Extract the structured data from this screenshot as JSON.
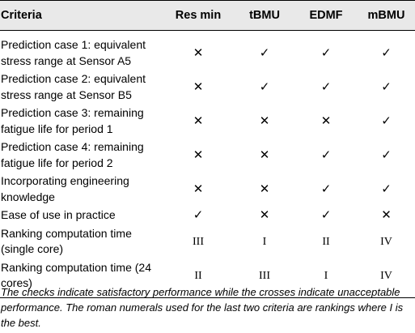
{
  "table": {
    "headers": [
      "Criteria",
      "Res min",
      "tBMU",
      "EDMF",
      "mBMU"
    ],
    "rows": [
      {
        "criterion": "Prediction case 1: equivalent stress range at Sensor A5",
        "values": [
          "✕",
          "✓",
          "✓",
          "✓"
        ]
      },
      {
        "criterion": "Prediction case 2: equivalent stress range at Sensor B5",
        "values": [
          "✕",
          "✓",
          "✓",
          "✓"
        ]
      },
      {
        "criterion": "Prediction case 3: remaining fatigue life for period 1",
        "values": [
          "✕",
          "✕",
          "✕",
          "✓"
        ]
      },
      {
        "criterion": "Prediction case 4: remaining fatigue life for period 2",
        "values": [
          "✕",
          "✕",
          "✓",
          "✓"
        ]
      },
      {
        "criterion": "Incorporating engineering knowledge",
        "values": [
          "✕",
          "✕",
          "✓",
          "✓"
        ]
      },
      {
        "criterion": "Ease of use in practice",
        "values": [
          "✓",
          "✕",
          "✓",
          "✕"
        ]
      },
      {
        "criterion": "Ranking computation time (single core)",
        "values": [
          "III",
          "I",
          "II",
          "IV"
        ]
      },
      {
        "criterion": "Ranking computation time (24 cores)",
        "values": [
          "II",
          "III",
          "I",
          "IV"
        ]
      }
    ]
  },
  "footnote": "The checks indicate satisfactory performance while the crosses indicate unacceptable performance. The roman numerals used for the last two criteria are rankings where I is the best."
}
